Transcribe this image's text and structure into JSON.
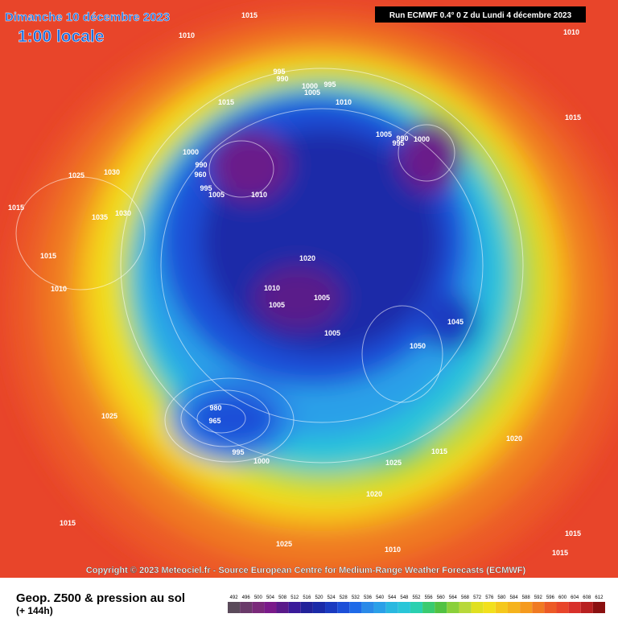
{
  "header": {
    "date": "Dimanche 10 décembre 2023",
    "time": "1:00 locale",
    "run": "Run ECMWF 0.4° 0 Z du Lundi 4 décembre 2023"
  },
  "map": {
    "pressure_labels": [
      1015,
      1010,
      1010,
      995,
      990,
      1000,
      995,
      1005,
      1015,
      1010,
      1005,
      995,
      990,
      1000,
      1015,
      1000,
      990,
      960,
      995,
      1005,
      1010,
      1025,
      1030,
      1015,
      1035,
      1030,
      1015,
      1010,
      1020,
      1010,
      1005,
      1005,
      1005,
      1050,
      1045,
      1025,
      965,
      980,
      995,
      1000,
      1015,
      1025,
      1010,
      1020,
      1025,
      1015,
      1020,
      1015,
      1015,
      1010
    ]
  },
  "copyright": "Copyright © 2023 Meteociel.fr - Source European Centre for Medium-Range Weather Forecasts (ECMWF)",
  "footer": {
    "title": "Geop. Z500 & pression au sol",
    "lead": "(+ 144h)"
  },
  "colorbar": {
    "levels": [
      492,
      496,
      500,
      504,
      508,
      512,
      516,
      520,
      524,
      528,
      532,
      536,
      540,
      544,
      548,
      552,
      556,
      560,
      564,
      568,
      572,
      576,
      580,
      584,
      588,
      592,
      596,
      600,
      604,
      608,
      612
    ],
    "colors": [
      "#5a4a5a",
      "#6a3a6a",
      "#7a2a7a",
      "#7a1a8a",
      "#5a1a8a",
      "#3a1a9a",
      "#22229a",
      "#1a2aa8",
      "#1a3ac0",
      "#1c4fd8",
      "#1e6ae8",
      "#2a8ae8",
      "#2aa0e8",
      "#29b8e0",
      "#29c6d8",
      "#2ad0b0",
      "#3acb70",
      "#52c242",
      "#8ad03a",
      "#b8d83a",
      "#e0e020",
      "#f2e01d",
      "#f5c81c",
      "#f5b31c",
      "#f59a1e",
      "#f07a22",
      "#ec5a26",
      "#e8452a",
      "#d8302a",
      "#b82020",
      "#8a1010"
    ]
  }
}
